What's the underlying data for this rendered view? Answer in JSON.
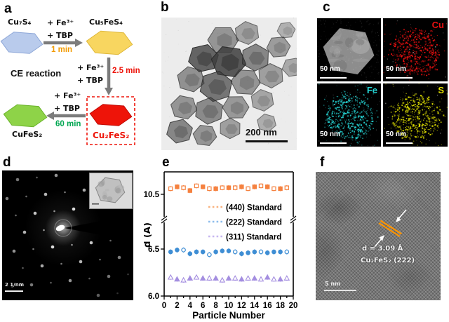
{
  "figure": {
    "panels": {
      "a": {
        "label": "a",
        "center_text": "CE reaction",
        "species": {
          "cu7s4": "Cu₇S₄",
          "cu5fes4": "Cu₅FeS₄",
          "cu2fes2": "Cu₂FeS₂",
          "cufes2": "CuFeS₂"
        },
        "reagents": {
          "fe": "+ Fe³⁺",
          "tbp": "+ TBP"
        },
        "times": {
          "step1": "1 min",
          "step2": "2.5 min",
          "step3": "60 min"
        },
        "colors": {
          "cu7s4_fill": "#b9cbec",
          "cu7s4_stroke": "#8fa8d8",
          "cu5fes4_fill": "#f8d660",
          "cu5fes4_stroke": "#dfb83a",
          "cu2fes2_fill": "#ee1409",
          "cu2fes2_stroke": "#c00a05",
          "cufes2_fill": "#8ed348",
          "cufes2_stroke": "#6ab32a",
          "time1": "#f29b00",
          "time2": "#ed1309",
          "time3": "#00a651",
          "arrow": "#7c7c7c",
          "highlight_box": "#ee1409"
        }
      },
      "b": {
        "label": "b",
        "scalebar": "200 nm"
      },
      "c": {
        "label": "c",
        "tiles": [
          {
            "element": "",
            "scalebar": "50 nm"
          },
          {
            "element": "Cu",
            "color": "#e81010",
            "scalebar": "50 nm"
          },
          {
            "element": "Fe",
            "color": "#25d5d5",
            "scalebar": "50 nm"
          },
          {
            "element": "S",
            "color": "#e0e000",
            "scalebar": "50 nm"
          }
        ]
      },
      "d": {
        "label": "d",
        "scalebar": "2 1/nm"
      },
      "e": {
        "label": "e"
      },
      "f": {
        "label": "f",
        "annotation_d": "d = 3.09 Å",
        "annotation_phase": "Cu₂FeS₂ (222)",
        "scalebar": "5 nm",
        "fringe_color": "#ff9500"
      }
    }
  },
  "chart_data": {
    "type": "scatter",
    "title": "",
    "xlabel": "Particle Number",
    "ylabel": "d (Å)",
    "xlim": [
      0,
      20
    ],
    "x_ticks": [
      0,
      2,
      4,
      6,
      8,
      10,
      12,
      14,
      16,
      18,
      20
    ],
    "y_axis_break": true,
    "y_ticks_lower": [
      {
        "value": 6.0,
        "label": "6.0"
      },
      {
        "value": 6.5,
        "label": "6.5"
      }
    ],
    "y_ticks_upper": [
      {
        "value": 10.5,
        "label": "10.5"
      }
    ],
    "ylim_lower": [
      6.0,
      6.78
    ],
    "ylim_upper": [
      10.31,
      10.74
    ],
    "grid": false,
    "legend_position": "center-right",
    "legend": [
      {
        "label": "(440) Standard",
        "color": "#f9b27f"
      },
      {
        "label": "(222) Standard",
        "color": "#8cbcec"
      },
      {
        "label": "(311) Standard",
        "color": "#c6b5f0"
      }
    ],
    "x": [
      1,
      2,
      3,
      4,
      5,
      6,
      7,
      8,
      9,
      10,
      11,
      12,
      13,
      14,
      15,
      16,
      17,
      18,
      19
    ],
    "series": [
      {
        "name": "(440)",
        "marker": "square",
        "color": "#f5813f",
        "values": [
          10.56,
          10.58,
          10.57,
          10.54,
          10.59,
          10.58,
          10.56,
          10.56,
          10.57,
          10.57,
          10.57,
          10.58,
          10.56,
          10.58,
          10.59,
          10.58,
          10.56,
          10.56,
          10.57
        ]
      },
      {
        "name": "(222)",
        "marker": "circle",
        "color": "#3f8ed4",
        "values": [
          6.47,
          6.49,
          6.49,
          6.45,
          6.47,
          6.47,
          6.44,
          6.47,
          6.48,
          6.48,
          6.47,
          6.45,
          6.46,
          6.47,
          6.47,
          6.46,
          6.47,
          6.47,
          6.47
        ]
      },
      {
        "name": "(311)",
        "marker": "triangle",
        "color": "#a48ee0",
        "values": [
          6.2,
          6.18,
          6.17,
          6.19,
          6.2,
          6.19,
          6.19,
          6.19,
          6.17,
          6.19,
          6.19,
          6.18,
          6.19,
          6.19,
          6.18,
          6.2,
          6.18,
          6.18,
          6.19
        ]
      }
    ]
  }
}
